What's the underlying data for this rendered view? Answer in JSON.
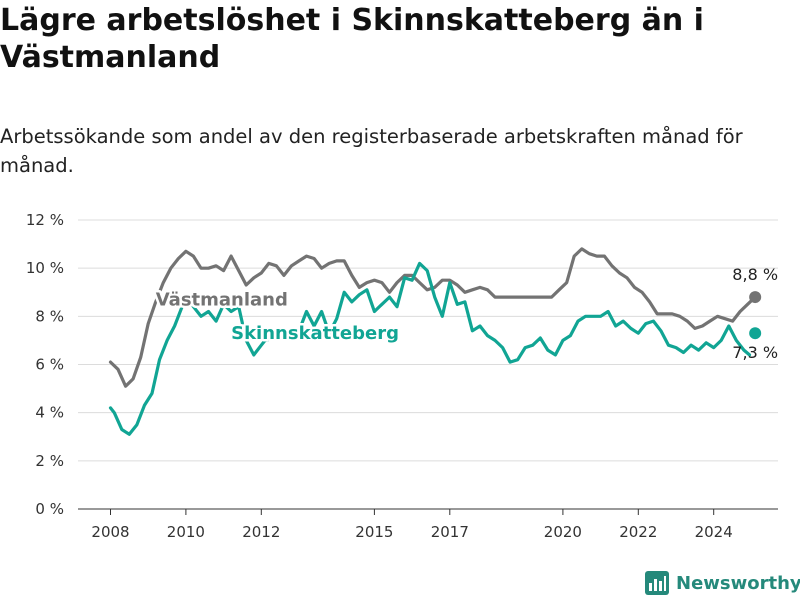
{
  "title": "Lägre arbetslöshet i Skinnskatteberg än i Västmanland",
  "subtitle": "Arbetssökande som andel av den registerbaserade arbetskraften månad för månad.",
  "brand": {
    "name": "Newsworthy"
  },
  "colors": {
    "skinnskatteberg": "#11a594",
    "vastmanland": "#737373",
    "brand": "#25897b"
  },
  "chart_data": {
    "type": "line",
    "ylim": [
      0,
      12
    ],
    "xlim": [
      2007.7,
      2025.8
    ],
    "y_ticks": [
      0,
      2,
      4,
      6,
      8,
      10,
      12
    ],
    "y_tick_labels": [
      "0 %",
      "2 %",
      "4 %",
      "6 %",
      "8 %",
      "10 %",
      "12 %"
    ],
    "x_ticks": [
      2008,
      2010,
      2012,
      2015,
      2017,
      2020,
      2022,
      2024
    ],
    "x_tick_labels": [
      "2008",
      "2010",
      "2012",
      "2015",
      "2017",
      "2020",
      "2022",
      "2024"
    ],
    "grid": true,
    "series": [
      {
        "name": "Västmanland",
        "color": "#737373",
        "label_at": [
          2009.2,
          8.7
        ],
        "end_label": "8,8 %",
        "points": [
          [
            2008.0,
            6.1
          ],
          [
            2008.2,
            5.8
          ],
          [
            2008.4,
            5.1
          ],
          [
            2008.6,
            5.4
          ],
          [
            2008.8,
            6.3
          ],
          [
            2009.0,
            7.7
          ],
          [
            2009.2,
            8.6
          ],
          [
            2009.4,
            9.4
          ],
          [
            2009.6,
            10.0
          ],
          [
            2009.8,
            10.4
          ],
          [
            2010.0,
            10.7
          ],
          [
            2010.2,
            10.5
          ],
          [
            2010.4,
            10.0
          ],
          [
            2010.6,
            10.0
          ],
          [
            2010.8,
            10.1
          ],
          [
            2011.0,
            9.9
          ],
          [
            2011.2,
            10.5
          ],
          [
            2011.4,
            9.9
          ],
          [
            2011.6,
            9.3
          ],
          [
            2011.8,
            9.6
          ],
          [
            2012.0,
            9.8
          ],
          [
            2012.2,
            10.2
          ],
          [
            2012.4,
            10.1
          ],
          [
            2012.6,
            9.7
          ],
          [
            2012.8,
            10.1
          ],
          [
            2013.0,
            10.3
          ],
          [
            2013.2,
            10.5
          ],
          [
            2013.4,
            10.4
          ],
          [
            2013.6,
            10.0
          ],
          [
            2013.8,
            10.2
          ],
          [
            2014.0,
            10.3
          ],
          [
            2014.2,
            10.3
          ],
          [
            2014.4,
            9.7
          ],
          [
            2014.6,
            9.2
          ],
          [
            2014.8,
            9.4
          ],
          [
            2015.0,
            9.5
          ],
          [
            2015.2,
            9.4
          ],
          [
            2015.4,
            9.0
          ],
          [
            2015.6,
            9.4
          ],
          [
            2015.8,
            9.7
          ],
          [
            2016.0,
            9.7
          ],
          [
            2016.2,
            9.4
          ],
          [
            2016.4,
            9.1
          ],
          [
            2016.6,
            9.2
          ],
          [
            2016.8,
            9.5
          ],
          [
            2017.0,
            9.5
          ],
          [
            2017.2,
            9.3
          ],
          [
            2017.4,
            9.0
          ],
          [
            2017.6,
            9.1
          ],
          [
            2017.8,
            9.2
          ],
          [
            2018.0,
            9.1
          ],
          [
            2018.2,
            8.8
          ],
          [
            2019.7,
            8.8
          ],
          [
            2019.9,
            9.1
          ],
          [
            2020.1,
            9.4
          ],
          [
            2020.3,
            10.5
          ],
          [
            2020.5,
            10.8
          ],
          [
            2020.7,
            10.6
          ],
          [
            2020.9,
            10.5
          ],
          [
            2021.1,
            10.5
          ],
          [
            2021.3,
            10.1
          ],
          [
            2021.5,
            9.8
          ],
          [
            2021.7,
            9.6
          ],
          [
            2021.9,
            9.2
          ],
          [
            2022.1,
            9.0
          ],
          [
            2022.3,
            8.6
          ],
          [
            2022.5,
            8.1
          ],
          [
            2022.7,
            8.1
          ],
          [
            2022.9,
            8.1
          ],
          [
            2023.1,
            8.0
          ],
          [
            2023.3,
            7.8
          ],
          [
            2023.5,
            7.5
          ],
          [
            2023.7,
            7.6
          ],
          [
            2023.9,
            7.8
          ],
          [
            2024.1,
            8.0
          ],
          [
            2024.3,
            7.9
          ],
          [
            2024.5,
            7.8
          ],
          [
            2024.7,
            8.2
          ],
          [
            2024.9,
            8.5
          ],
          [
            2025.1,
            8.8
          ]
        ]
      },
      {
        "name": "Skinnskatteberg",
        "color": "#11a594",
        "label_at": [
          2011.2,
          7.3
        ],
        "end_label": "7,3 %",
        "points": [
          [
            2008.0,
            4.2
          ],
          [
            2008.1,
            4.0
          ],
          [
            2008.3,
            3.3
          ],
          [
            2008.5,
            3.1
          ],
          [
            2008.7,
            3.5
          ],
          [
            2008.9,
            4.3
          ],
          [
            2009.1,
            4.8
          ],
          [
            2009.3,
            6.2
          ],
          [
            2009.5,
            7.0
          ],
          [
            2009.7,
            7.6
          ],
          [
            2009.9,
            8.4
          ],
          [
            2010.0,
            8.8
          ],
          [
            2010.2,
            8.4
          ],
          [
            2010.4,
            8.0
          ],
          [
            2010.6,
            8.2
          ],
          [
            2010.8,
            7.8
          ],
          [
            2011.0,
            8.5
          ],
          [
            2011.2,
            8.2
          ],
          [
            2011.4,
            8.4
          ],
          [
            2011.6,
            7.0
          ],
          [
            2011.8,
            6.4
          ],
          [
            2012.0,
            6.8
          ],
          [
            2012.1,
            7.0
          ],
          [
            2013.0,
            7.4
          ],
          [
            2013.2,
            8.2
          ],
          [
            2013.4,
            7.6
          ],
          [
            2013.6,
            8.2
          ],
          [
            2013.8,
            7.3
          ],
          [
            2014.0,
            7.9
          ],
          [
            2014.2,
            9.0
          ],
          [
            2014.4,
            8.6
          ],
          [
            2014.6,
            8.9
          ],
          [
            2014.8,
            9.1
          ],
          [
            2015.0,
            8.2
          ],
          [
            2015.2,
            8.5
          ],
          [
            2015.4,
            8.8
          ],
          [
            2015.6,
            8.4
          ],
          [
            2015.8,
            9.6
          ],
          [
            2016.0,
            9.5
          ],
          [
            2016.2,
            10.2
          ],
          [
            2016.4,
            9.9
          ],
          [
            2016.6,
            8.8
          ],
          [
            2016.8,
            8.0
          ],
          [
            2017.0,
            9.4
          ],
          [
            2017.2,
            8.5
          ],
          [
            2017.4,
            8.6
          ],
          [
            2017.6,
            7.4
          ],
          [
            2017.8,
            7.6
          ],
          [
            2018.0,
            7.2
          ],
          [
            2018.2,
            7.0
          ],
          [
            2018.4,
            6.7
          ],
          [
            2018.6,
            6.1
          ],
          [
            2018.8,
            6.2
          ],
          [
            2019.0,
            6.7
          ],
          [
            2019.2,
            6.8
          ],
          [
            2019.4,
            7.1
          ],
          [
            2019.6,
            6.6
          ],
          [
            2019.8,
            6.4
          ],
          [
            2020.0,
            7.0
          ],
          [
            2020.2,
            7.2
          ],
          [
            2020.4,
            7.8
          ],
          [
            2020.6,
            8.0
          ],
          [
            2021.0,
            8.0
          ],
          [
            2021.2,
            8.2
          ],
          [
            2021.4,
            7.6
          ],
          [
            2021.6,
            7.8
          ],
          [
            2021.8,
            7.5
          ],
          [
            2022.0,
            7.3
          ],
          [
            2022.2,
            7.7
          ],
          [
            2022.4,
            7.8
          ],
          [
            2022.6,
            7.4
          ],
          [
            2022.8,
            6.8
          ],
          [
            2023.0,
            6.7
          ],
          [
            2023.2,
            6.5
          ],
          [
            2023.4,
            6.8
          ],
          [
            2023.6,
            6.6
          ],
          [
            2023.8,
            6.9
          ],
          [
            2024.0,
            6.7
          ],
          [
            2024.2,
            7.0
          ],
          [
            2024.4,
            7.6
          ],
          [
            2024.6,
            7.0
          ],
          [
            2024.8,
            6.6
          ],
          [
            2024.95,
            6.4
          ]
        ],
        "end_point": [
          2025.1,
          7.3
        ]
      }
    ]
  }
}
